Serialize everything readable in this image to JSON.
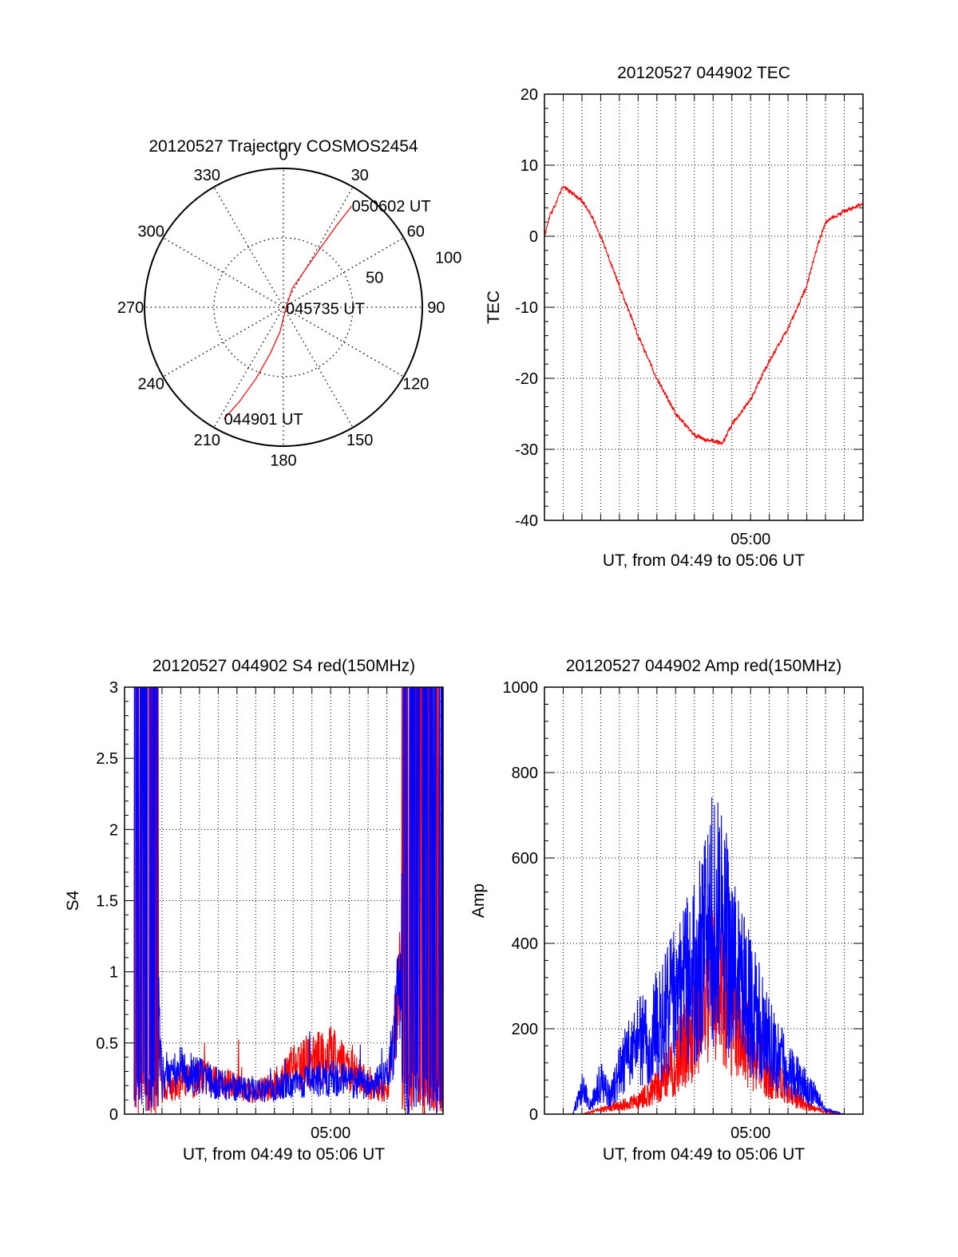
{
  "colors": {
    "red": "#ff0000",
    "blue": "#0000ff",
    "axis": "#000000",
    "grid": "#000000"
  },
  "chart_data": [
    {
      "type": "polar",
      "title": "20120527 Trajectory COSMOS2454",
      "angle_labels": [
        "0",
        "30",
        "60",
        "90",
        "120",
        "150",
        "180",
        "210",
        "240",
        "270",
        "300",
        "330"
      ],
      "radius_labels": [
        "50",
        "100"
      ],
      "rlim": [
        0,
        100
      ],
      "grid": true,
      "series": [
        {
          "color": "red",
          "points": [
            [
              208,
              91
            ],
            [
              205,
              75
            ],
            [
              201,
              55
            ],
            [
              196,
              35
            ],
            [
              188,
              18
            ],
            [
              120,
              2
            ],
            [
              25,
              15
            ],
            [
              30,
              30
            ],
            [
              32,
              50
            ],
            [
              33,
              70
            ],
            [
              34,
              88
            ]
          ]
        }
      ],
      "annotations": [
        {
          "text": "044901 UT",
          "at": [
            208,
            91
          ]
        },
        {
          "text": "045735 UT",
          "at": [
            120,
            2
          ]
        },
        {
          "text": "050602 UT",
          "at": [
            34,
            88
          ]
        }
      ]
    },
    {
      "type": "line",
      "title": "20120527 044902 TEC",
      "xlabel": "UT, from 04:49 to 05:06 UT",
      "ylabel": "TEC",
      "xlim": [
        0,
        17.0
      ],
      "ylim": [
        -40,
        20
      ],
      "yticks": [
        "20",
        "10",
        "0",
        "-10",
        "-20",
        "-30",
        "-40"
      ],
      "xtick_label": "05:00",
      "grid": true,
      "series": [
        {
          "color": "red",
          "x": [
            0,
            0.3,
            0.6,
            0.9,
            1.0,
            1.2,
            1.5,
            2.0,
            2.5,
            3.0,
            4.0,
            5.0,
            6.0,
            7.0,
            8.0,
            8.5,
            9.0,
            9.5,
            10.0,
            11.0,
            12.0,
            13.0,
            14.0,
            14.5,
            15.0,
            15.3,
            16.0,
            17.0
          ],
          "y": [
            0,
            3,
            4.5,
            6.5,
            7,
            6.6,
            6,
            5,
            3,
            0,
            -7,
            -14,
            -20,
            -25,
            -28,
            -28.6,
            -28.8,
            -29.2,
            -26.5,
            -23,
            -17.5,
            -13,
            -7,
            -2,
            2,
            2.5,
            3.5,
            4.5
          ]
        }
      ]
    },
    {
      "type": "line",
      "title": "20120527 044902 S4 red(150MHz)",
      "xlabel": "UT, from 04:49 to 05:06 UT",
      "ylabel": "S4",
      "xlim": [
        0,
        17.0
      ],
      "ylim": [
        0,
        3
      ],
      "yticks": [
        "3",
        "2.5",
        "2",
        "1.5",
        "1",
        "0.5",
        "0"
      ],
      "xtick_label": "05:00",
      "grid": true,
      "series": [
        {
          "color": "red",
          "x": [
            0.5,
            2.0,
            3.0,
            4.0,
            5.0,
            6.0,
            7.0,
            8.0,
            9.0,
            10.0,
            11.0,
            12.0,
            13.0,
            14.0,
            14.5,
            15.0,
            15.5,
            16.0,
            16.5,
            17.0
          ],
          "y": [
            2.5,
            0.15,
            0.2,
            0.25,
            0.22,
            0.18,
            0.15,
            0.2,
            0.3,
            0.35,
            0.4,
            0.3,
            0.2,
            0.15,
            0.6,
            1.5,
            2.2,
            2.5,
            2.8,
            2.5
          ]
        },
        {
          "color": "blue",
          "x": [
            0.5,
            1.0,
            1.5,
            2.0,
            3.0,
            4.0,
            5.0,
            6.0,
            7.0,
            8.0,
            9.0,
            10.0,
            11.0,
            12.0,
            13.0,
            14.0,
            14.5,
            15.0,
            15.5,
            16.0,
            16.5,
            17.0
          ],
          "y": [
            2.0,
            2.5,
            1.5,
            0.2,
            0.3,
            0.25,
            0.2,
            0.18,
            0.15,
            0.17,
            0.2,
            0.22,
            0.25,
            0.22,
            0.2,
            0.25,
            0.6,
            1.5,
            2.2,
            2.0,
            1.8,
            1.6
          ]
        }
      ]
    },
    {
      "type": "line",
      "title": "20120527 044902 Amp red(150MHz)",
      "xlabel": "UT, from 04:49 to 05:06 UT",
      "ylabel": "Amp",
      "xlim": [
        0,
        17.0
      ],
      "ylim": [
        0,
        1000
      ],
      "yticks": [
        "1000",
        "800",
        "600",
        "400",
        "200",
        "0"
      ],
      "xtick_label": "05:00",
      "grid": true,
      "series": [
        {
          "color": "red",
          "x": [
            0,
            2,
            3,
            4,
            5,
            6,
            7,
            8,
            8.5,
            9,
            9.5,
            10,
            10.5,
            11,
            12,
            13,
            14,
            15,
            16,
            17
          ],
          "y": [
            0,
            0,
            10,
            20,
            30,
            60,
            120,
            200,
            260,
            300,
            280,
            220,
            200,
            160,
            100,
            50,
            20,
            5,
            0,
            0
          ]
        },
        {
          "color": "blue",
          "x": [
            0,
            1.5,
            2,
            2.5,
            3,
            3.5,
            4,
            5,
            6,
            7,
            7.5,
            8,
            8.5,
            9,
            9.5,
            10,
            10.5,
            11,
            12,
            13,
            14,
            14.5,
            15,
            16,
            17
          ],
          "y": [
            0,
            0,
            60,
            20,
            80,
            40,
            100,
            160,
            200,
            260,
            300,
            320,
            380,
            450,
            420,
            350,
            300,
            250,
            160,
            100,
            60,
            40,
            10,
            0,
            0
          ]
        }
      ]
    }
  ]
}
